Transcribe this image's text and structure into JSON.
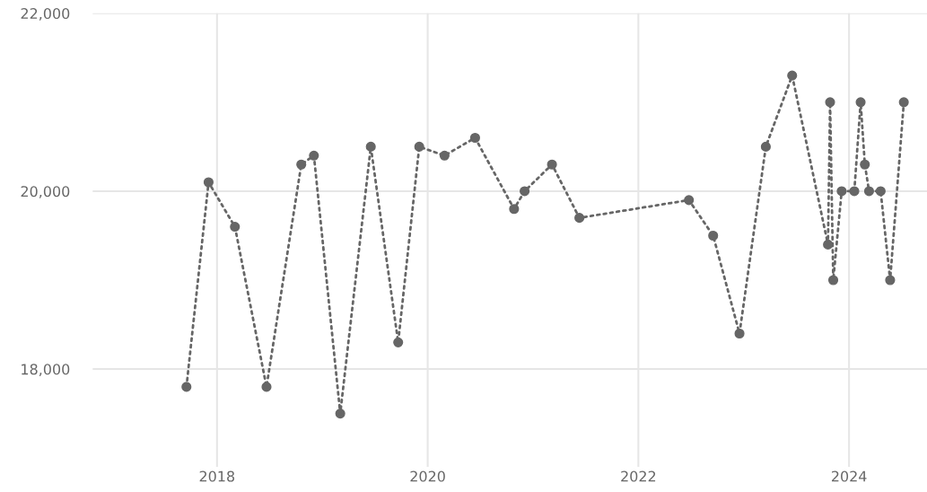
{
  "chart_data": {
    "type": "line",
    "x": [
      2017.71,
      2017.92,
      2018.17,
      2018.47,
      2018.8,
      2018.92,
      2019.17,
      2019.46,
      2019.72,
      2019.92,
      2020.16,
      2020.45,
      2020.82,
      2020.92,
      2021.18,
      2021.44,
      2022.48,
      2022.71,
      2022.96,
      2023.21,
      2023.46,
      2023.8,
      2023.82,
      2023.85,
      2023.93,
      2024.05,
      2024.11,
      2024.15,
      2024.19,
      2024.3,
      2024.39,
      2024.52
    ],
    "series": [
      {
        "color": "#666666",
        "values": [
          17800,
          20100,
          19600,
          17800,
          20300,
          20400,
          17500,
          20500,
          18300,
          20500,
          20400,
          20600,
          19800,
          20000,
          20300,
          19700,
          19900,
          19500,
          18400,
          20500,
          21300,
          19400,
          21000,
          19000,
          20000,
          20000,
          21000,
          20300,
          20000,
          20000,
          19000,
          21000
        ]
      }
    ],
    "xlim": [
      2016.82,
      2024.74
    ],
    "xticks": [
      2018,
      2020,
      2022,
      2024
    ],
    "ylim": [
      16900,
      22000
    ],
    "yticks": [
      {
        "value": 18000,
        "label": "18,000"
      },
      {
        "value": 20000,
        "label": "20,000"
      },
      {
        "value": 22000,
        "label": "22,000"
      }
    ],
    "grid": true,
    "marker": "circle",
    "line_style": "dotted"
  }
}
